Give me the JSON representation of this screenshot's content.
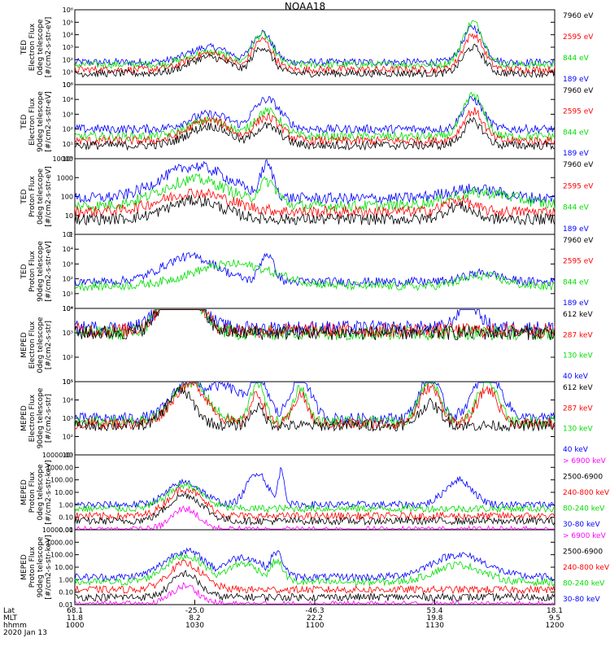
{
  "title": "NOAA18",
  "colors": {
    "blue": "#0000ff",
    "red": "#ff0000",
    "green": "#00dd00",
    "black": "#000000",
    "magenta": "#ff00ff"
  },
  "footer": {
    "row_labels": [
      "Lat",
      "MLT",
      "hhmm"
    ],
    "date": "2020 Jan 13",
    "ticks": [
      {
        "lat": "68.1",
        "mlt": "11.8",
        "hhmm": "1000"
      },
      {
        "lat": "-25.0",
        "mlt": "8.2",
        "hhmm": "1030"
      },
      {
        "lat": "-46.3",
        "mlt": "22.2",
        "hhmm": "1100"
      },
      {
        "lat": "53.4",
        "mlt": "19.8",
        "hhmm": "1130"
      },
      {
        "lat": "18.1",
        "mlt": "9.5",
        "hhmm": "1200"
      }
    ]
  },
  "chart_data": [
    {
      "type": "line",
      "ylabel": [
        "TED",
        "Electron Flux",
        "0deg telescope",
        "[#/cm2-s-str-eV]"
      ],
      "yscale": "log",
      "yticks": [
        "10⁶",
        "10⁵",
        "10⁴",
        "10³",
        "10²",
        "10¹",
        "10⁰"
      ],
      "legend": [
        {
          "text": "7960 eV",
          "color": "black"
        },
        {
          "text": "2595 eV",
          "color": "red"
        },
        {
          "text": "844 eV",
          "color": "green"
        },
        {
          "text": "189 eV",
          "color": "blue"
        }
      ],
      "series": [
        {
          "name": "189 eV",
          "color": "blue",
          "base": 1.8,
          "peaks": [
            [
              0.28,
              3.0,
              0.06
            ],
            [
              0.39,
              4.2,
              0.03
            ],
            [
              0.83,
              4.6,
              0.03
            ]
          ]
        },
        {
          "name": "844 eV",
          "color": "green",
          "base": 1.6,
          "peaks": [
            [
              0.28,
              2.6,
              0.06
            ],
            [
              0.39,
              4.0,
              0.03
            ],
            [
              0.83,
              5.0,
              0.03
            ]
          ]
        },
        {
          "name": "2595 eV",
          "color": "red",
          "base": 1.2,
          "peaks": [
            [
              0.28,
              2.5,
              0.06
            ],
            [
              0.39,
              3.6,
              0.03
            ],
            [
              0.83,
              4.0,
              0.03
            ]
          ]
        },
        {
          "name": "7960 eV",
          "color": "black",
          "base": 0.9,
          "peaks": [
            [
              0.28,
              2.2,
              0.06
            ],
            [
              0.39,
              3.0,
              0.03
            ],
            [
              0.83,
              3.0,
              0.03
            ]
          ]
        }
      ]
    },
    {
      "type": "line",
      "ylabel": [
        "TED",
        "Electron Flux",
        "90deg telescope",
        "[#/cm2-s-str-eV]"
      ],
      "yscale": "log",
      "yticks": [
        "10⁵",
        "10⁴",
        "10³",
        "10²",
        "10¹",
        "10⁰"
      ],
      "legend": [
        {
          "text": "7960 eV",
          "color": "black"
        },
        {
          "text": "2595 eV",
          "color": "red"
        },
        {
          "text": "844 eV",
          "color": "green"
        },
        {
          "text": "189 eV",
          "color": "blue"
        }
      ],
      "series": [
        {
          "name": "189 eV",
          "color": "blue",
          "base": 2.0,
          "peaks": [
            [
              0.28,
              3.0,
              0.06
            ],
            [
              0.4,
              4.0,
              0.04
            ],
            [
              0.83,
              4.0,
              0.03
            ]
          ]
        },
        {
          "name": "844 eV",
          "color": "green",
          "base": 1.5,
          "peaks": [
            [
              0.28,
              2.6,
              0.06
            ],
            [
              0.4,
              3.2,
              0.04
            ],
            [
              0.83,
              4.3,
              0.03
            ]
          ]
        },
        {
          "name": "2595 eV",
          "color": "red",
          "base": 1.2,
          "peaks": [
            [
              0.28,
              2.6,
              0.06
            ],
            [
              0.4,
              2.8,
              0.04
            ],
            [
              0.83,
              3.2,
              0.03
            ]
          ]
        },
        {
          "name": "7960 eV",
          "color": "black",
          "base": 0.9,
          "peaks": [
            [
              0.28,
              2.2,
              0.06
            ],
            [
              0.4,
              2.2,
              0.04
            ],
            [
              0.83,
              2.5,
              0.03
            ]
          ]
        }
      ]
    },
    {
      "type": "line",
      "ylabel": [
        "TED",
        "Proton Flux",
        "0deg telescope",
        "[#/cm2-s-str-eV]"
      ],
      "yscale": "log",
      "yticks": [
        "10000",
        "1000",
        "100",
        "10",
        "1"
      ],
      "legend": [
        {
          "text": "7960 eV",
          "color": "black"
        },
        {
          "text": "2595 eV",
          "color": "red"
        },
        {
          "text": "844 eV",
          "color": "green"
        },
        {
          "text": "189 eV",
          "color": "blue"
        }
      ],
      "series": [
        {
          "name": "189 eV",
          "color": "blue",
          "base": 1.9,
          "peaks": [
            [
              0.25,
              3.6,
              0.1
            ],
            [
              0.4,
              3.7,
              0.02
            ],
            [
              0.83,
              2.4,
              0.08
            ]
          ]
        },
        {
          "name": "844 eV",
          "color": "green",
          "base": 1.5,
          "peaks": [
            [
              0.25,
              2.9,
              0.1
            ],
            [
              0.4,
              2.8,
              0.03
            ],
            [
              0.85,
              2.2,
              0.1
            ]
          ]
        },
        {
          "name": "2595 eV",
          "color": "red",
          "base": 1.2,
          "peaks": [
            [
              0.25,
              2.2,
              0.1
            ],
            [
              0.8,
              1.8,
              0.04
            ]
          ]
        },
        {
          "name": "7960 eV",
          "color": "black",
          "base": 0.8,
          "peaks": [
            [
              0.25,
              1.8,
              0.08
            ],
            [
              0.8,
              1.5,
              0.04
            ]
          ]
        }
      ]
    },
    {
      "type": "line",
      "ylabel": [
        "TED",
        "Proton Flux",
        "90deg telescope",
        "[#/cm2-s-str-eV]"
      ],
      "yscale": "log",
      "yticks": [
        "10⁵",
        "10⁴",
        "10³",
        "10²",
        "10¹",
        "10⁰"
      ],
      "legend": [
        {
          "text": "7960 eV",
          "color": "black"
        },
        {
          "text": "2595 eV",
          "color": "red"
        },
        {
          "text": "844 eV",
          "color": "green"
        },
        {
          "text": "189 eV",
          "color": "blue"
        }
      ],
      "series": [
        {
          "name": "189 eV",
          "color": "blue",
          "base": 1.8,
          "peaks": [
            [
              0.24,
              3.5,
              0.08
            ],
            [
              0.4,
              3.7,
              0.02
            ],
            [
              0.85,
              2.4,
              0.05
            ]
          ]
        },
        {
          "name": "844 eV",
          "color": "green",
          "base": 1.5,
          "peaks": [
            [
              0.33,
              3.0,
              0.12
            ],
            [
              0.85,
              2.2,
              0.06
            ]
          ]
        }
      ]
    },
    {
      "type": "line",
      "ylabel": [
        "MEPED",
        "Electron Flux",
        "0deg telescope",
        "[#/cm2-s-str]"
      ],
      "yscale": "log",
      "yticks": [
        "10⁴",
        "10³",
        "10²",
        "10¹"
      ],
      "legend": [
        {
          "text": "612 keV",
          "color": "black"
        },
        {
          "text": "287 keV",
          "color": "red"
        },
        {
          "text": "130 keV",
          "color": "green"
        },
        {
          "text": "40 keV",
          "color": "blue"
        }
      ],
      "series": [
        {
          "name": "40 keV",
          "color": "blue",
          "base": 2.2,
          "peaks": [
            [
              0.22,
              4.3,
              0.05
            ],
            [
              0.82,
              3.3,
              0.03
            ]
          ]
        },
        {
          "name": "130 keV",
          "color": "green",
          "base": 2.0,
          "peaks": [
            [
              0.22,
              4.2,
              0.05
            ]
          ]
        },
        {
          "name": "287 keV",
          "color": "red",
          "base": 2.1,
          "peaks": [
            [
              0.22,
              4.2,
              0.05
            ]
          ]
        },
        {
          "name": "612 keV",
          "color": "black",
          "base": 2.0,
          "peaks": [
            [
              0.22,
              4.1,
              0.05
            ]
          ]
        }
      ]
    },
    {
      "type": "line",
      "ylabel": [
        "MEPED",
        "Electron Flux",
        "90deg telescope",
        "[#/cm2-s-str]"
      ],
      "yscale": "log",
      "yticks": [
        "10⁵",
        "10⁴",
        "10³",
        "10²",
        "10¹"
      ],
      "legend": [
        {
          "text": "612 keV",
          "color": "black"
        },
        {
          "text": "287 keV",
          "color": "red"
        },
        {
          "text": "130 keV",
          "color": "green"
        },
        {
          "text": "40 keV",
          "color": "blue"
        }
      ],
      "series": [
        {
          "name": "40 keV",
          "color": "blue",
          "base": 2.0,
          "peaks": [
            [
              0.24,
              4.1,
              0.05
            ],
            [
              0.3,
              3.8,
              0.08
            ],
            [
              0.38,
              4.4,
              0.03
            ],
            [
              0.47,
              4.3,
              0.03
            ],
            [
              0.74,
              4.3,
              0.03
            ],
            [
              0.86,
              4.5,
              0.04
            ]
          ]
        },
        {
          "name": "130 keV",
          "color": "green",
          "base": 1.8,
          "peaks": [
            [
              0.24,
              4.0,
              0.05
            ],
            [
              0.38,
              4.0,
              0.02
            ],
            [
              0.47,
              3.7,
              0.02
            ],
            [
              0.74,
              4.1,
              0.03
            ],
            [
              0.86,
              4.0,
              0.03
            ]
          ]
        },
        {
          "name": "287 keV",
          "color": "red",
          "base": 1.7,
          "peaks": [
            [
              0.24,
              3.9,
              0.05
            ],
            [
              0.38,
              3.3,
              0.02
            ],
            [
              0.47,
              3.3,
              0.02
            ],
            [
              0.74,
              3.7,
              0.03
            ],
            [
              0.86,
              3.6,
              0.03
            ]
          ]
        },
        {
          "name": "612 keV",
          "color": "black",
          "base": 1.6,
          "peaks": [
            [
              0.22,
              3.5,
              0.04
            ],
            [
              0.38,
              2.6,
              0.02
            ],
            [
              0.74,
              2.8,
              0.03
            ]
          ]
        }
      ]
    },
    {
      "type": "line",
      "ylabel": [
        "MEPED",
        "Proton Flux",
        "0deg telescope",
        "[#/cm2-s-str-keV]"
      ],
      "yscale": "log",
      "yticks": [
        "10000.00",
        "1000.00",
        "100.00",
        "10.00",
        "1.00",
        "0.10",
        "0.01"
      ],
      "legend": [
        {
          "text": "> 6900 keV",
          "color": "magenta"
        },
        {
          "text": "2500-6900",
          "color": "black"
        },
        {
          "text": "240-800 keV",
          "color": "red"
        },
        {
          "text": "80-240 keV",
          "color": "green"
        },
        {
          "text": "30-80 keV",
          "color": "blue"
        }
      ],
      "series": [
        {
          "name": "30-80 keV",
          "color": "blue",
          "base": 0.0,
          "peaks": [
            [
              0.23,
              1.8,
              0.05
            ],
            [
              0.38,
              2.6,
              0.03
            ],
            [
              0.43,
              2.8,
              0.01
            ],
            [
              0.8,
              2.0,
              0.04
            ]
          ]
        },
        {
          "name": "80-240 keV",
          "color": "green",
          "base": -0.3,
          "peaks": [
            [
              0.23,
              1.6,
              0.05
            ]
          ]
        },
        {
          "name": "240-800 keV",
          "color": "red",
          "base": -0.9,
          "peaks": [
            [
              0.23,
              1.3,
              0.05
            ]
          ]
        },
        {
          "name": "2500-6900",
          "color": "black",
          "base": -1.3,
          "peaks": [
            [
              0.23,
              0.8,
              0.05
            ]
          ]
        },
        {
          "name": "> 6900 keV",
          "color": "magenta",
          "base": -2.0,
          "peaks": [
            [
              0.23,
              -0.3,
              0.04
            ]
          ]
        }
      ]
    },
    {
      "type": "line",
      "ylabel": [
        "MEPED",
        "Proton Flux",
        "90deg telescope",
        "[#/cm2-s-str-keV]"
      ],
      "yscale": "log",
      "yticks": [
        "10000.00",
        "1000.00",
        "100.00",
        "10.00",
        "1.00",
        "0.10",
        "0.01"
      ],
      "legend": [
        {
          "text": "> 6900 keV",
          "color": "magenta"
        },
        {
          "text": "2500-6900",
          "color": "black"
        },
        {
          "text": "240-800 keV",
          "color": "red"
        },
        {
          "text": "80-240 keV",
          "color": "green"
        },
        {
          "text": "30-80 keV",
          "color": "blue"
        }
      ],
      "series": [
        {
          "name": "30-80 keV",
          "color": "blue",
          "base": 0.2,
          "peaks": [
            [
              0.23,
              2.3,
              0.06
            ],
            [
              0.35,
              1.8,
              0.06
            ],
            [
              0.42,
              2.2,
              0.02
            ],
            [
              0.8,
              2.0,
              0.08
            ]
          ]
        },
        {
          "name": "80-240 keV",
          "color": "green",
          "base": -0.2,
          "peaks": [
            [
              0.23,
              1.9,
              0.06
            ],
            [
              0.35,
              1.3,
              0.05
            ],
            [
              0.42,
              1.5,
              0.02
            ],
            [
              0.8,
              1.2,
              0.07
            ]
          ]
        },
        {
          "name": "240-800 keV",
          "color": "red",
          "base": -0.8,
          "peaks": [
            [
              0.23,
              1.3,
              0.05
            ]
          ]
        },
        {
          "name": "2500-6900",
          "color": "black",
          "base": -1.4,
          "peaks": [
            [
              0.23,
              0.5,
              0.04
            ]
          ]
        },
        {
          "name": "> 6900 keV",
          "color": "magenta",
          "base": -2.0,
          "peaks": [
            [
              0.23,
              -0.5,
              0.04
            ]
          ]
        }
      ]
    }
  ]
}
